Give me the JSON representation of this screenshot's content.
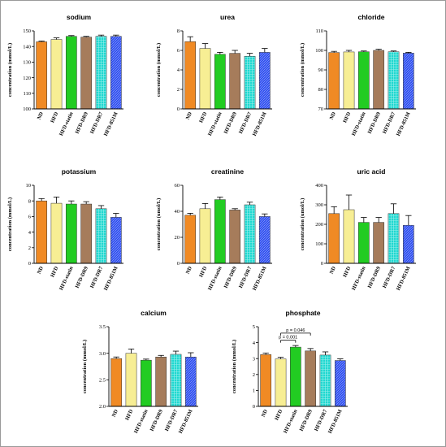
{
  "categories": [
    "ND",
    "HFD",
    "HFD-statin",
    "HFD-DR9",
    "HFD-DR7",
    "HFD-851M"
  ],
  "colors": [
    "#f08a24",
    "#f7ee94",
    "#22cc22",
    "#a67c5b",
    "#1fd8d0",
    "#2f4ff0"
  ],
  "chart_data": [
    {
      "type": "bar",
      "title": "sodium",
      "ylabel": "concentration (mmol/L)",
      "ylim": [
        100,
        150
      ],
      "yticks": [
        "100",
        "110",
        "120",
        "130",
        "140",
        "150"
      ],
      "categories": [
        "ND",
        "HFD",
        "HFD-statin",
        "HFD-DR9",
        "HFD-DR7",
        "HFD-851M"
      ],
      "values": [
        143,
        144.5,
        146.5,
        146,
        146.5,
        146.5
      ],
      "errors": [
        0.5,
        1,
        0.5,
        0.5,
        0.8,
        0.8
      ]
    },
    {
      "type": "bar",
      "title": "urea",
      "ylabel": "concentration (mmol/L)",
      "ylim": [
        0,
        8
      ],
      "yticks": [
        "0",
        "2",
        "4",
        "6",
        "8"
      ],
      "categories": [
        "ND",
        "HFD",
        "HFD-statin",
        "HFD-DR9",
        "HFD-DR7",
        "HFD-851M"
      ],
      "values": [
        6.9,
        6.2,
        5.6,
        5.7,
        5.4,
        5.8
      ],
      "errors": [
        0.5,
        0.5,
        0.2,
        0.3,
        0.3,
        0.4
      ]
    },
    {
      "type": "bar",
      "title": "chloride",
      "ylabel": "concentration (mmol/L)",
      "ylim": [
        70,
        110
      ],
      "yticks": [
        "70",
        "80",
        "90",
        "100",
        "110"
      ],
      "categories": [
        "ND",
        "HFD",
        "HFD-statin",
        "HFD-DR9",
        "HFD-DR7",
        "HFD-851M"
      ],
      "values": [
        98.9,
        99.2,
        99.3,
        100,
        99.3,
        98.6
      ],
      "errors": [
        0.6,
        0.8,
        0.4,
        0.6,
        0.4,
        0.4
      ]
    },
    {
      "type": "bar",
      "title": "potassium",
      "ylabel": "concentration (mmol/L)",
      "ylim": [
        0,
        10
      ],
      "yticks": [
        "0",
        "2",
        "4",
        "6",
        "8",
        "10"
      ],
      "categories": [
        "ND",
        "HFD",
        "HFD-statin",
        "HFD-DR9",
        "HFD-DR7",
        "HFD-851M"
      ],
      "values": [
        8.0,
        7.7,
        7.6,
        7.6,
        7.0,
        5.9
      ],
      "errors": [
        0.3,
        0.8,
        0.4,
        0.3,
        0.4,
        0.5
      ]
    },
    {
      "type": "bar",
      "title": "creatinine",
      "ylabel": "concentration (umol/L)",
      "ylim": [
        0,
        60
      ],
      "yticks": [
        "0",
        "20",
        "40",
        "60"
      ],
      "categories": [
        "ND",
        "HFD",
        "HFD-statin",
        "HFD-DR9",
        "HFD-DR7",
        "HFD-851M"
      ],
      "values": [
        37,
        42,
        49,
        41,
        45,
        36
      ],
      "errors": [
        1.5,
        4,
        2,
        1,
        2,
        2
      ]
    },
    {
      "type": "bar",
      "title": "uric acid",
      "ylabel": "concentration (umol/L)",
      "ylim": [
        0,
        400
      ],
      "yticks": [
        "0",
        "100",
        "200",
        "300",
        "400"
      ],
      "categories": [
        "ND",
        "HFD",
        "HFD-statin",
        "HFD-DR9",
        "HFD-DR7",
        "HFD-851M"
      ],
      "values": [
        255,
        275,
        210,
        210,
        255,
        195
      ],
      "errors": [
        35,
        75,
        25,
        25,
        50,
        50
      ]
    },
    {
      "type": "bar",
      "title": "calcium",
      "ylabel": "concentration (mmol/L)",
      "ylim": [
        2.0,
        3.5
      ],
      "yticks": [
        "2.0",
        "2.5",
        "3.0",
        "3.5"
      ],
      "categories": [
        "ND",
        "HFD",
        "HFD-statin",
        "HFD-DR9",
        "HFD-DR7",
        "HFD-851M"
      ],
      "values": [
        2.9,
        3.0,
        2.87,
        2.93,
        2.98,
        2.93
      ],
      "errors": [
        0.03,
        0.08,
        0.02,
        0.03,
        0.06,
        0.08
      ]
    },
    {
      "type": "bar",
      "title": "phosphate",
      "ylabel": "concentration (mmol/L)",
      "ylim": [
        0,
        5
      ],
      "yticks": [
        "0",
        "1",
        "2",
        "3",
        "4",
        "5"
      ],
      "categories": [
        "ND",
        "HFD",
        "HFD-statin",
        "HFD-DR9",
        "HFD-DR7",
        "HFD-851M"
      ],
      "values": [
        3.25,
        2.98,
        3.72,
        3.48,
        3.22,
        2.88
      ],
      "errors": [
        0.1,
        0.1,
        0.1,
        0.15,
        0.2,
        0.1
      ],
      "annotations": [
        {
          "text": "p = 0.001",
          "from": "HFD",
          "to": "HFD-statin"
        },
        {
          "text": "p = 0.046",
          "from": "HFD",
          "to": "HFD-DR9"
        }
      ]
    }
  ]
}
